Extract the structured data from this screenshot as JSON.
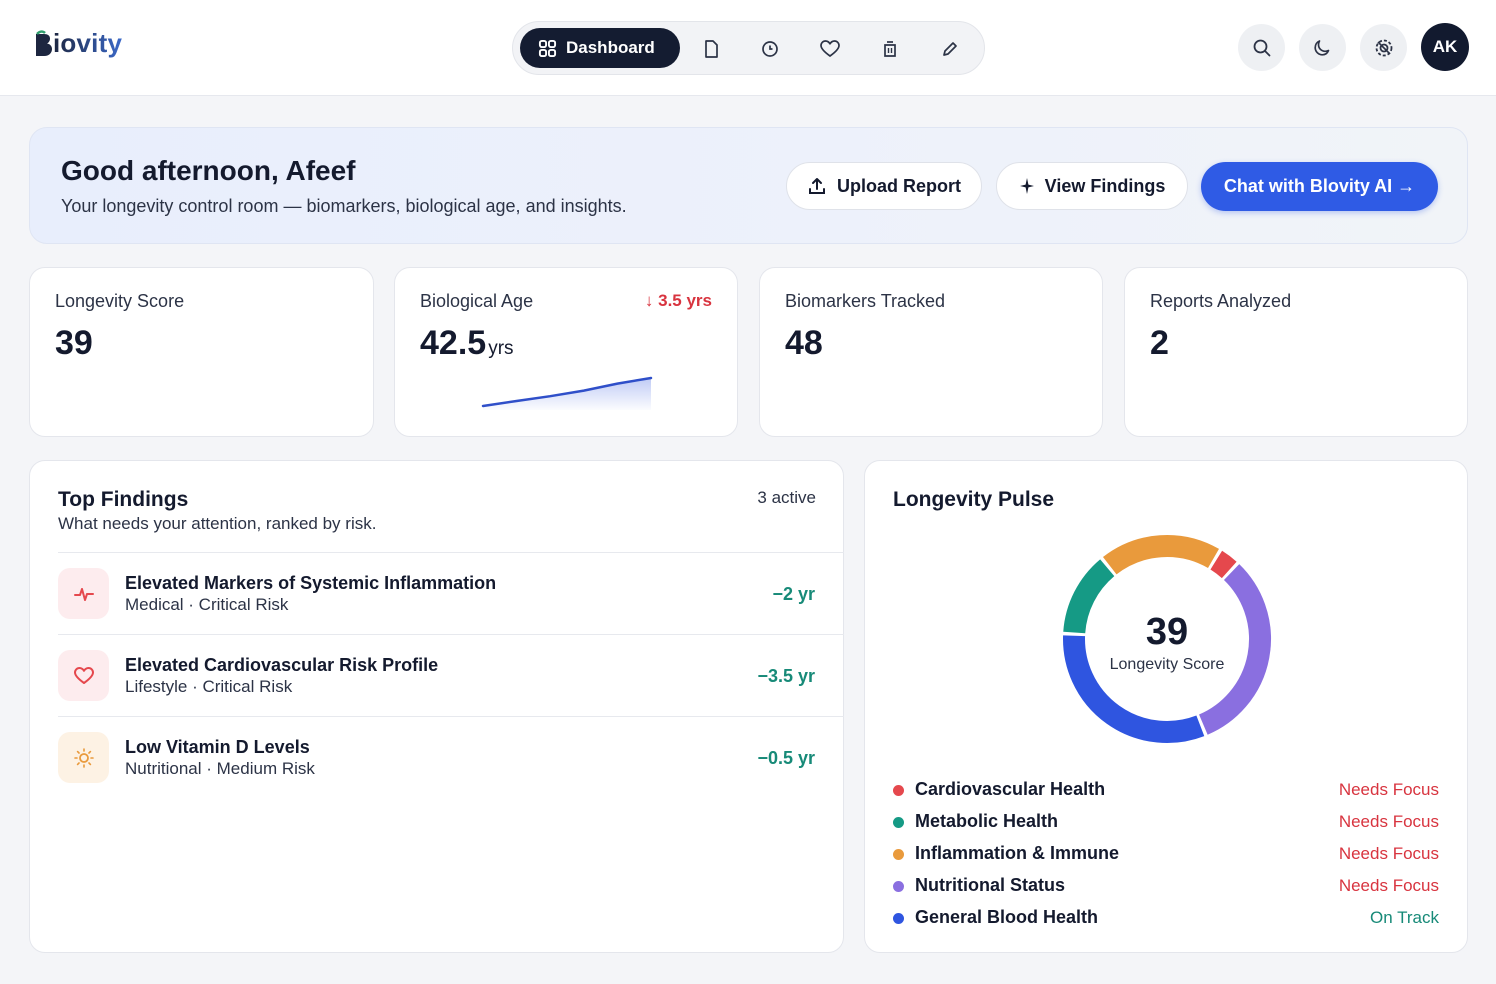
{
  "header": {
    "logo_text": "iovity",
    "nav_active_label": "Dashboard",
    "nav_icons": [
      "file-icon",
      "clock-icon",
      "heart-icon",
      "trash-icon",
      "pencil-icon"
    ],
    "avatar_initials": "AK"
  },
  "banner": {
    "title": "Good afternoon, Afeef",
    "subtitle": "Your longevity control room — biomarkers, biological age, and insights.",
    "upload_label": "Upload Report",
    "findings_label": "View Findings",
    "chat_label": "Chat with Blovity AI →"
  },
  "stats": [
    {
      "label": "Longevity Score",
      "value": "39"
    },
    {
      "label": "Biological Age",
      "value": "42.5",
      "unit": "yrs",
      "delta": "↓ 3.5 yrs"
    },
    {
      "label": "Biomarkers Tracked",
      "value": "48"
    },
    {
      "label": "Reports Analyzed",
      "value": "2"
    }
  ],
  "bio_age_trend": [
    0.0,
    0.18,
    0.35,
    0.55,
    0.8,
    1.0
  ],
  "findings": {
    "title": "Top Findings",
    "subtitle": "What needs your attention, ranked by risk.",
    "active_count": "3 active",
    "items": [
      {
        "title": "Elevated Markers of Systemic Inflammation",
        "meta": "Medical · Critical Risk",
        "value": "−2 yr",
        "icon": "pulse-icon"
      },
      {
        "title": "Elevated Cardiovascular Risk Profile",
        "meta": "Lifestyle · Critical Risk",
        "value": "−3.5 yr",
        "icon": "heart-icon"
      },
      {
        "title": "Low Vitamin D Levels",
        "meta": "Nutritional · Medium Risk",
        "value": "−0.5 yr",
        "icon": "sun-icon"
      }
    ]
  },
  "pulse": {
    "title": "Longevity Pulse",
    "score": "39",
    "score_label": "Longevity Score",
    "categories": [
      {
        "name": "Cardiovascular Health",
        "status": "Needs Focus",
        "color": "#e5484d"
      },
      {
        "name": "Metabolic Health",
        "status": "Needs Focus",
        "color": "#159a85"
      },
      {
        "name": "Inflammation & Immune",
        "status": "Needs Focus",
        "color": "#e99a3c"
      },
      {
        "name": "Nutritional Status",
        "status": "Needs Focus",
        "color": "#8a6fe0"
      },
      {
        "name": "General Blood Health",
        "status": "On Track",
        "color": "#2f55e0"
      }
    ]
  },
  "colors": {
    "accent": "#2f5be5",
    "danger": "#d8343f",
    "success": "#178a78",
    "nav_dark": "#141c31"
  }
}
